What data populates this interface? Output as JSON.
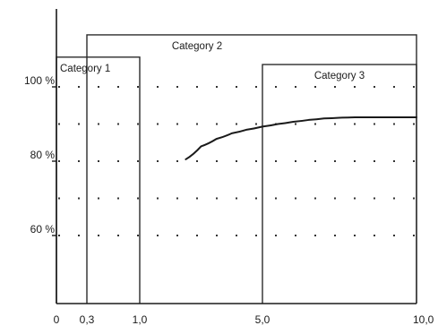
{
  "chart_data": {
    "type": "line",
    "title": "",
    "xlabel": "",
    "ylabel": "",
    "x_ticks": [
      {
        "value": 0,
        "label": "0"
      },
      {
        "value": 0.3,
        "label": "0,3"
      },
      {
        "value": 1.0,
        "label": "1,0"
      },
      {
        "value": 5.0,
        "label": "5,0"
      },
      {
        "value": 10.0,
        "label": "10,0"
      }
    ],
    "y_ticks": [
      {
        "value": 100,
        "label": "100 %"
      },
      {
        "value": 80,
        "label": "80 %"
      },
      {
        "value": 60,
        "label": "60 %"
      }
    ],
    "y_dotted_gridlines": [
      100,
      90,
      80,
      70,
      60
    ],
    "grid": true,
    "xlim": [
      0,
      10.0
    ],
    "ylim": [
      40,
      116
    ],
    "categories": [
      {
        "name": "Category 1",
        "x_range": [
          0,
          1.0
        ],
        "y_top": 108
      },
      {
        "name": "Category 2",
        "x_range": [
          0.3,
          10.0
        ],
        "y_top": 114
      },
      {
        "name": "Category 3",
        "x_range": [
          5.0,
          10.0
        ],
        "y_top": 106
      }
    ],
    "series": [
      {
        "x": [
          2.5,
          3.0,
          3.5,
          4.0,
          4.5,
          5.0,
          5.5,
          6.0,
          6.5,
          7.0,
          7.5,
          8.0,
          10.0
        ],
        "y": [
          80.5,
          84.0,
          86.0,
          87.5,
          88.5,
          89.3,
          90.0,
          90.6,
          91.1,
          91.5,
          91.7,
          91.8,
          91.8
        ]
      }
    ],
    "colors": {
      "axis": "#1a1a1a",
      "box": "#2a2a2a",
      "curve": "#1a1a1a",
      "grid": "#333333"
    }
  }
}
